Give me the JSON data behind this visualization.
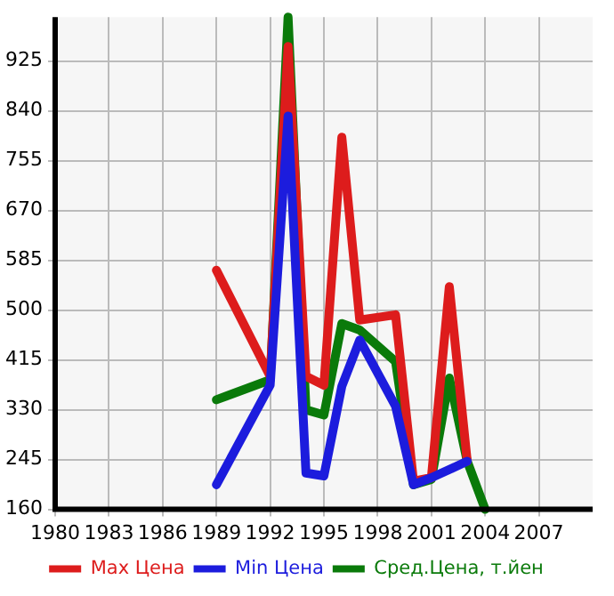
{
  "chart_data": {
    "type": "line",
    "xlim": [
      1980,
      2010
    ],
    "xticks": [
      1980,
      1983,
      1986,
      1989,
      1992,
      1995,
      1998,
      2001,
      2004,
      2007
    ],
    "ylim": [
      160,
      1000
    ],
    "yticks": [
      160,
      245,
      330,
      415,
      500,
      585,
      670,
      755,
      840,
      925
    ],
    "grid": true,
    "legend": "bottom",
    "marker": "none",
    "line_style": "solid",
    "series": [
      {
        "name": "Max Цена",
        "color": "#dd1c1c",
        "x": [
          1989,
          1992,
          1993,
          1994,
          1995,
          1996,
          1997,
          1999,
          2000,
          2001,
          2002,
          2003
        ],
        "values": [
          568,
          387,
          950,
          387,
          372,
          795,
          483,
          492,
          208,
          214,
          540,
          242
        ]
      },
      {
        "name": "Min Цена",
        "color": "#1c1cdd",
        "x": [
          1989,
          1992,
          1993,
          1994,
          1995,
          1996,
          1997,
          1999,
          2000,
          2001,
          2003
        ],
        "values": [
          202,
          372,
          831,
          222,
          217,
          370,
          449,
          336,
          202,
          214,
          242
        ]
      },
      {
        "name": "Сред.Цена, т.йен",
        "color": "#0a7a0a",
        "x": [
          1989,
          1992,
          1993,
          1994,
          1995,
          1996,
          1997,
          1999,
          2000,
          2001,
          2002,
          2003,
          2004
        ],
        "values": [
          347,
          381,
          1000,
          330,
          321,
          477,
          466,
          412,
          202,
          211,
          384,
          242,
          160
        ]
      }
    ]
  }
}
